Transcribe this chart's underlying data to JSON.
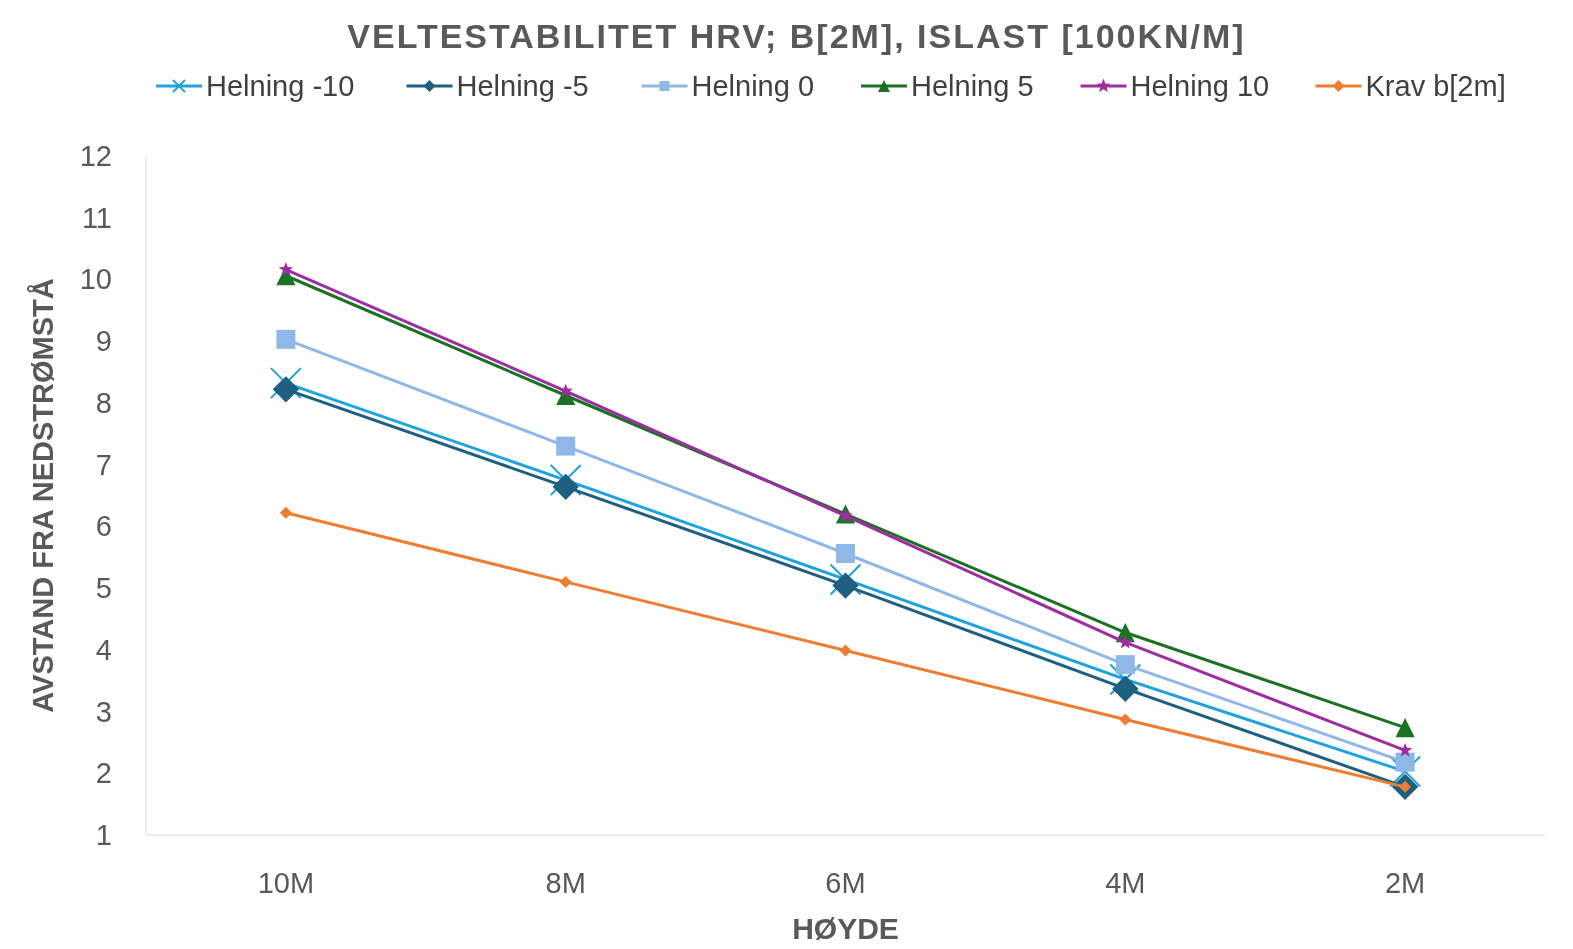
{
  "chart_data": {
    "type": "line",
    "title": "VELTESTABILITET HRV; B[2M], ISLAST [100KN/M]",
    "xlabel": "HØYDE",
    "ylabel": "AVSTAND FRA NEDSTRØMSTÅ",
    "categories": [
      "10M",
      "8M",
      "6M",
      "4M",
      "2M"
    ],
    "ylim": [
      1,
      12
    ],
    "yticks": [
      1,
      2,
      3,
      4,
      5,
      6,
      7,
      8,
      9,
      10,
      11,
      12
    ],
    "grid": false,
    "legend": "top",
    "series": [
      {
        "name": "Helning -10",
        "color": "#1ea3dc",
        "marker": "cross",
        "values": [
          8.32,
          6.75,
          5.14,
          3.52,
          2.03
        ]
      },
      {
        "name": "Helning -5",
        "color": "#1f5f7f",
        "marker": "diamond",
        "values": [
          8.22,
          6.64,
          5.04,
          3.37,
          1.78
        ]
      },
      {
        "name": "Helning 0",
        "color": "#8fb8e8",
        "marker": "square",
        "values": [
          9.03,
          7.3,
          5.56,
          3.76,
          2.18
        ]
      },
      {
        "name": "Helning 5",
        "color": "#1b7224",
        "marker": "triangle",
        "values": [
          10.06,
          8.12,
          6.2,
          4.28,
          2.74
        ]
      },
      {
        "name": "Helning 10",
        "color": "#9c2ea2",
        "marker": "star",
        "values": [
          10.16,
          8.19,
          6.17,
          4.12,
          2.37
        ]
      },
      {
        "name": "Krav b[2m]",
        "color": "#ee7d31",
        "marker": "diamond",
        "values": [
          6.22,
          5.1,
          3.99,
          2.87,
          1.78
        ]
      }
    ]
  }
}
